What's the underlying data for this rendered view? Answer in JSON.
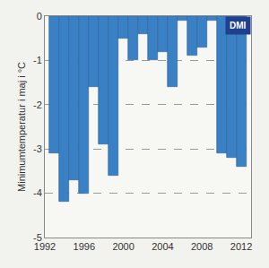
{
  "chart_data": {
    "type": "bar",
    "y_label": "Minimumtemperatur i maj i °C",
    "x": [
      1993,
      1994,
      1995,
      1996,
      1997,
      1998,
      1999,
      2000,
      2001,
      2002,
      2003,
      2004,
      2005,
      2006,
      2007,
      2008,
      2009,
      2010,
      2011,
      2012
    ],
    "values": [
      -3.1,
      -4.2,
      -3.7,
      -4.0,
      -1.6,
      -2.9,
      -3.6,
      -0.5,
      -1.0,
      -0.4,
      -1.0,
      -0.8,
      -1.6,
      -0.1,
      -0.9,
      -0.7,
      -0.1,
      -3.1,
      -3.2,
      -3.4
    ],
    "color": "#3a80c4",
    "xlim": [
      1992,
      2013
    ],
    "xticks": [
      1992,
      1996,
      2000,
      2004,
      2008,
      2012
    ],
    "ylim": [
      -5,
      0
    ],
    "yticks": [
      -5,
      -4,
      -3,
      -2,
      -1,
      0
    ],
    "grid": true,
    "annotations": [
      "DMI"
    ]
  }
}
